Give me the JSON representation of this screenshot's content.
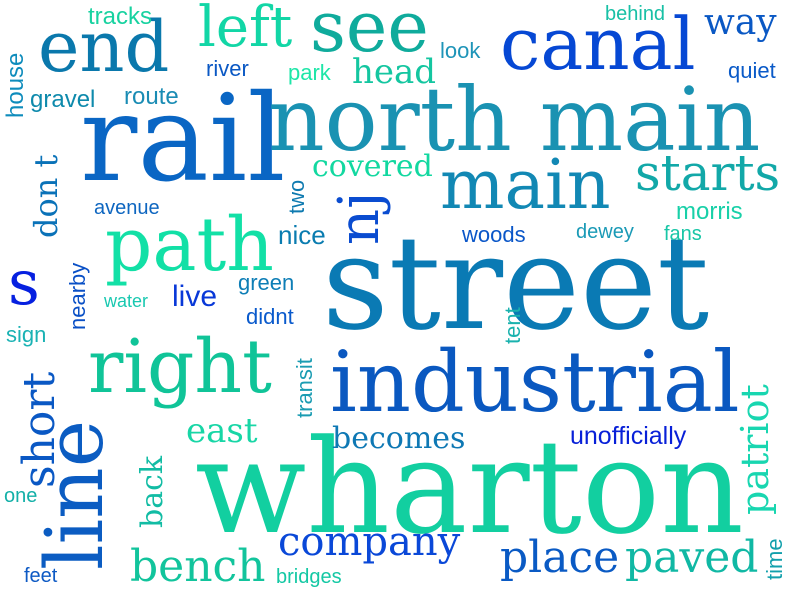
{
  "words": [
    {
      "text": "street",
      "color": "#0a7ab4"
    },
    {
      "text": "wharton",
      "color": "#12cfa0"
    },
    {
      "text": "rail",
      "color": "#0a66c4"
    },
    {
      "text": "north main",
      "color": "#1a92b2"
    },
    {
      "text": "industrial",
      "color": "#0a58c0"
    },
    {
      "text": "canal",
      "color": "#0648d4"
    },
    {
      "text": "line",
      "color": "#0b5cc2"
    },
    {
      "text": "path",
      "color": "#12e0a6"
    },
    {
      "text": "right",
      "color": "#10c498"
    },
    {
      "text": "main",
      "color": "#1288b4"
    },
    {
      "text": "end",
      "color": "#0a78ac"
    },
    {
      "text": "see",
      "color": "#0fab9c"
    },
    {
      "text": "starts",
      "color": "#12a8a8"
    },
    {
      "text": "left",
      "color": "#12d6a6"
    },
    {
      "text": "nj",
      "color": "#0a4cd0"
    },
    {
      "text": "company",
      "color": "#0a48d8"
    },
    {
      "text": "place",
      "color": "#0a5ac4"
    },
    {
      "text": "paved",
      "color": "#10b8a4"
    },
    {
      "text": "bench",
      "color": "#12c49c"
    },
    {
      "text": "s",
      "color": "#0620e0"
    },
    {
      "text": "short",
      "color": "#0a58c4"
    },
    {
      "text": "patriot",
      "color": "#18d6b0"
    },
    {
      "text": "becomes",
      "color": "#0e78b4"
    },
    {
      "text": "way",
      "color": "#0a58c4"
    },
    {
      "text": "head",
      "color": "#14c6a0"
    },
    {
      "text": "don t",
      "color": "#0a72b8"
    },
    {
      "text": "live",
      "color": "#0838d8"
    },
    {
      "text": "east",
      "color": "#18d6a6"
    },
    {
      "text": "unofficially",
      "color": "#0820d8"
    },
    {
      "text": "nearby",
      "color": "#0a50c6"
    },
    {
      "text": "back",
      "color": "#12bca4"
    },
    {
      "text": "covered",
      "color": "#12d8a0"
    },
    {
      "text": "route",
      "color": "#1a8cb4"
    },
    {
      "text": "gravel",
      "color": "#0e8aac"
    },
    {
      "text": "river",
      "color": "#0a58c4"
    },
    {
      "text": "park",
      "color": "#1ee6a8"
    },
    {
      "text": "tracks",
      "color": "#18d2a0"
    },
    {
      "text": "house",
      "color": "#0e8cbc"
    },
    {
      "text": "look",
      "color": "#1e94b8"
    },
    {
      "text": "behind",
      "color": "#18c0a6"
    },
    {
      "text": "quiet",
      "color": "#0a5ac8"
    },
    {
      "text": "nice",
      "color": "#0a7cb0"
    },
    {
      "text": "green",
      "color": "#0e7eb6"
    },
    {
      "text": "didnt",
      "color": "#0a5acc"
    },
    {
      "text": "transit",
      "color": "#1a9cb2"
    },
    {
      "text": "two",
      "color": "#0e7ab0"
    },
    {
      "text": "avenue",
      "color": "#0e66c0"
    },
    {
      "text": "woods",
      "color": "#0a56c8"
    },
    {
      "text": "dewey",
      "color": "#1a9ab6"
    },
    {
      "text": "morris",
      "color": "#18d0a8"
    },
    {
      "text": "fans",
      "color": "#18c6a6"
    },
    {
      "text": "tent",
      "color": "#1ab2ae"
    },
    {
      "text": "water",
      "color": "#18c8b0"
    },
    {
      "text": "sign",
      "color": "#1ab2b4"
    },
    {
      "text": "one",
      "color": "#14b0a8"
    },
    {
      "text": "feet",
      "color": "#0e5ac4"
    },
    {
      "text": "bridges",
      "color": "#14c8a4"
    },
    {
      "text": "time",
      "color": "#12a0ac"
    }
  ]
}
